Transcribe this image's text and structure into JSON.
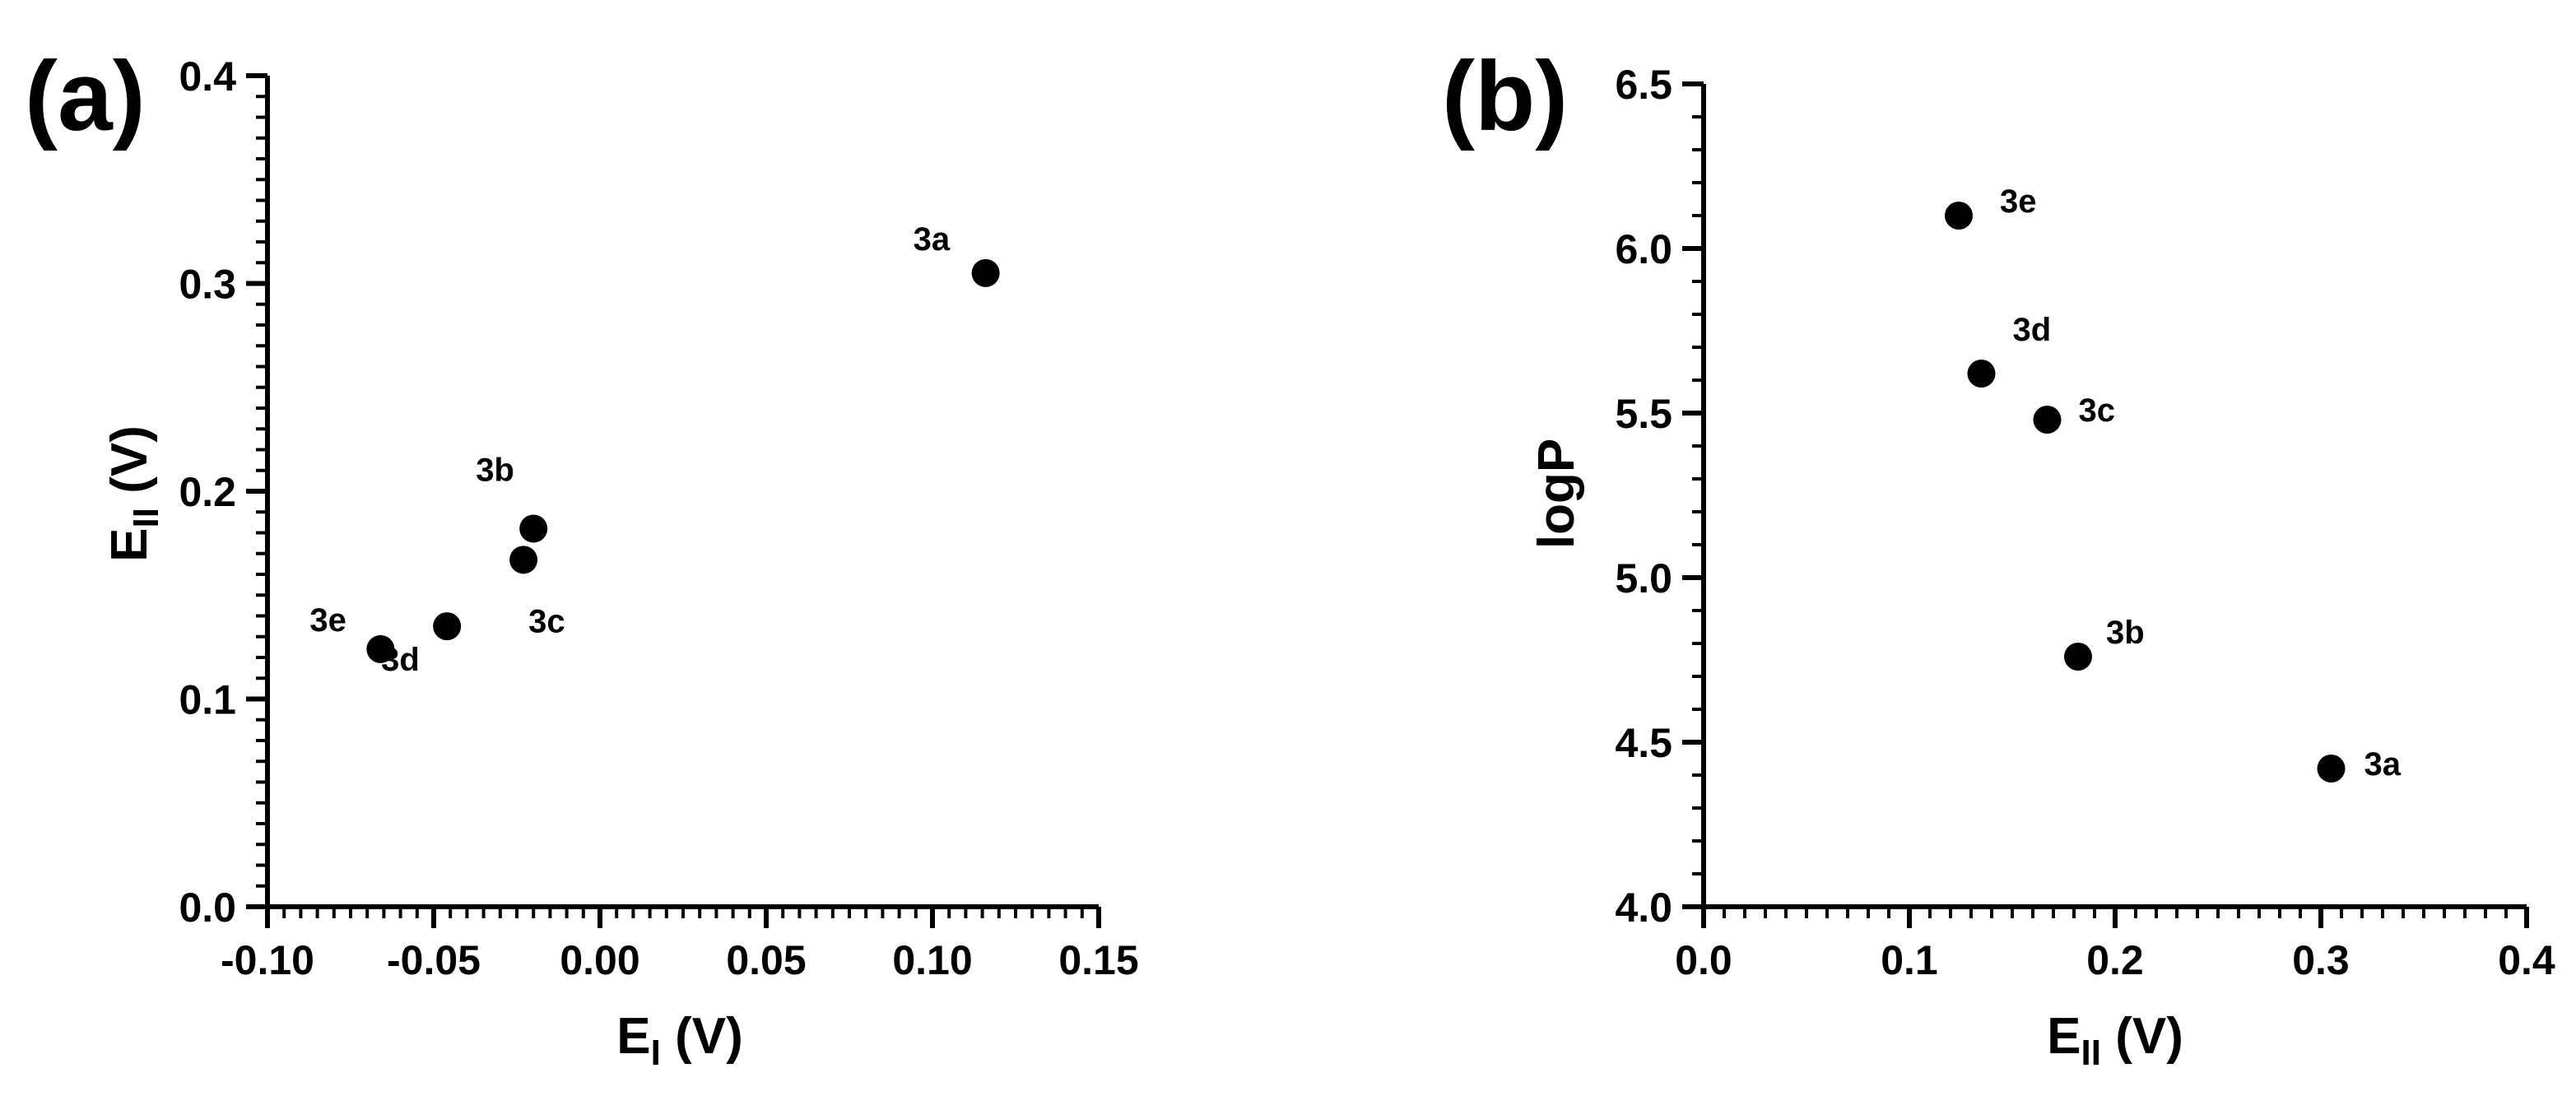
{
  "chart_data": [
    {
      "type": "scatter",
      "panel_label": "(a)",
      "xlabel_main": "E",
      "xlabel_sub": "I",
      "xlabel_unit": " (V)",
      "ylabel_main": "E",
      "ylabel_sub": "II",
      "ylabel_unit": " (V)",
      "xlim": [
        -0.1,
        0.15
      ],
      "ylim": [
        0.0,
        0.4
      ],
      "xticks": [
        -0.1,
        -0.05,
        0.0,
        0.05,
        0.1,
        0.15
      ],
      "xtick_labels": [
        "-0.10",
        "-0.05",
        "0.00",
        "0.05",
        "0.10",
        "0.15"
      ],
      "yticks": [
        0.0,
        0.1,
        0.2,
        0.3,
        0.4
      ],
      "ytick_labels": [
        "0.0",
        "0.1",
        "0.2",
        "0.3",
        "0.4"
      ],
      "x_minor_step": 0.005,
      "y_minor_step": 0.01,
      "grid": false,
      "marker_color": "#000000",
      "points": [
        {
          "label": "3a",
          "x": 0.116,
          "y": 0.305
        },
        {
          "label": "3b",
          "x": -0.02,
          "y": 0.182
        },
        {
          "label": "3c",
          "x": -0.023,
          "y": 0.167
        },
        {
          "label": "3d",
          "x": -0.046,
          "y": 0.135
        },
        {
          "label": "3e",
          "x": -0.066,
          "y": 0.124
        }
      ]
    },
    {
      "type": "scatter",
      "panel_label": "(b)",
      "xlabel_main": "E",
      "xlabel_sub": "II",
      "xlabel_unit": " (V)",
      "ylabel_main": "logP",
      "ylabel_sub": "",
      "ylabel_unit": "",
      "xlim": [
        0.0,
        0.4
      ],
      "ylim": [
        4.0,
        6.5
      ],
      "xticks": [
        0.0,
        0.1,
        0.2,
        0.3,
        0.4
      ],
      "xtick_labels": [
        "0.0",
        "0.1",
        "0.2",
        "0.3",
        "0.4"
      ],
      "yticks": [
        4.0,
        4.5,
        5.0,
        5.5,
        6.0,
        6.5
      ],
      "ytick_labels": [
        "4.0",
        "4.5",
        "5.0",
        "5.5",
        "6.0",
        "6.5"
      ],
      "x_minor_step": 0.01,
      "y_minor_step": 0.1,
      "grid": false,
      "marker_color": "#000000",
      "points": [
        {
          "label": "3e",
          "x": 0.124,
          "y": 6.1
        },
        {
          "label": "3d",
          "x": 0.135,
          "y": 5.62
        },
        {
          "label": "3c",
          "x": 0.167,
          "y": 5.48
        },
        {
          "label": "3b",
          "x": 0.182,
          "y": 4.76
        },
        {
          "label": "3a",
          "x": 0.305,
          "y": 4.42
        }
      ]
    }
  ]
}
